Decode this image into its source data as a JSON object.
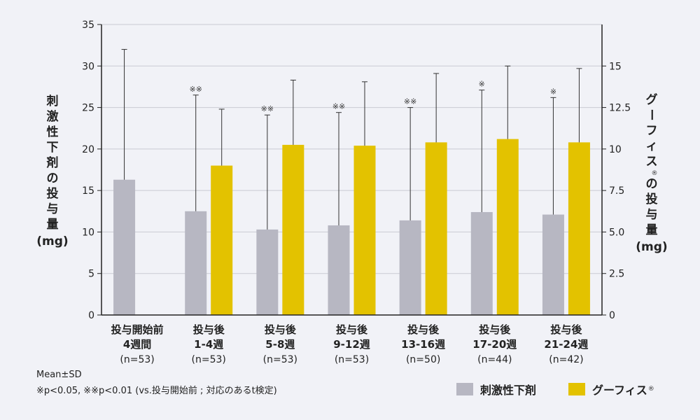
{
  "chart_data": {
    "type": "bar",
    "categories": [
      {
        "label1": "投与開始前",
        "label2": "4週間",
        "n": "(n=53)"
      },
      {
        "label1": "投与後",
        "label2": "1-4週",
        "n": "(n=53)"
      },
      {
        "label1": "投与後",
        "label2": "5-8週",
        "n": "(n=53)"
      },
      {
        "label1": "投与後",
        "label2": "9-12週",
        "n": "(n=53)"
      },
      {
        "label1": "投与後",
        "label2": "13-16週",
        "n": "(n=50)"
      },
      {
        "label1": "投与後",
        "label2": "17-20週",
        "n": "(n=44)"
      },
      {
        "label1": "投与後",
        "label2": "21-24週",
        "n": "(n=42)"
      }
    ],
    "series": [
      {
        "name": "刺激性下剤",
        "color": "#b7b7c2",
        "axis": "left",
        "values": [
          16.3,
          12.5,
          10.3,
          10.8,
          11.4,
          12.4,
          12.1
        ],
        "sd_upper": [
          32.0,
          26.5,
          24.1,
          24.4,
          25.0,
          27.1,
          26.2
        ],
        "significance": [
          "",
          "※※",
          "※※",
          "※※",
          "※※",
          "※",
          "※"
        ]
      },
      {
        "name": "グーフィス",
        "name_mark": "®",
        "color": "#e3c200",
        "axis": "right",
        "values": [
          null,
          9.0,
          10.25,
          10.2,
          10.4,
          10.6,
          10.4
        ],
        "sd_upper": [
          null,
          12.4,
          14.15,
          14.05,
          14.55,
          15.0,
          14.85
        ]
      }
    ],
    "y_left": {
      "title_chars": [
        "刺",
        "激",
        "性",
        "下",
        "剤",
        "の",
        "投",
        "与",
        "量"
      ],
      "unit": "(mg)",
      "range": [
        0,
        35
      ],
      "ticks": [
        0,
        5,
        10,
        15,
        20,
        25,
        30,
        35
      ],
      "tick_labels": [
        "0",
        "5",
        "10",
        "15",
        "20",
        "25",
        "30",
        "35"
      ]
    },
    "y_right": {
      "title_chars": [
        "グ",
        "ー",
        "フ",
        "ィ",
        "ス",
        "®",
        "の",
        "投",
        "与",
        "量"
      ],
      "unit": "(mg)",
      "range": [
        0,
        17.5
      ],
      "ticks": [
        0,
        2.5,
        5,
        7.5,
        10,
        12.5,
        15
      ],
      "tick_labels": [
        "0",
        "2.5",
        "5.0",
        "7.5",
        "10",
        "12.5",
        "15"
      ]
    },
    "grid": true,
    "legend_position": "bottom-right"
  },
  "notes": {
    "line1": "Mean±SD",
    "line2": "※p<0.05, ※※p<0.01 (vs.投与開始前 ; 対応のあるt検定)"
  }
}
